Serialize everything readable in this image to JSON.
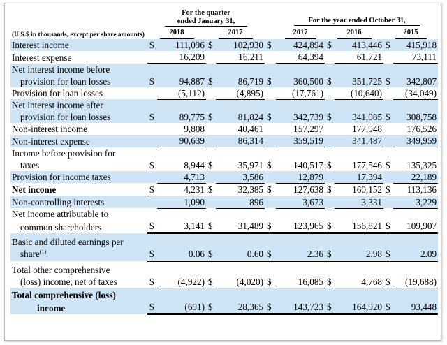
{
  "header": {
    "quarter_group": "For the quarter ended January 31,",
    "quarter_line1": "For the quarter",
    "quarter_line2": "ended January 31,",
    "year_group": "For the year ended October 31,",
    "units_label": "(U.S.$ in thousands, except per share amounts)",
    "years": [
      "2018",
      "2017",
      "2017",
      "2016",
      "2015"
    ]
  },
  "rows": [
    {
      "label": "Interest income",
      "values": [
        "111,096",
        "102,930",
        "424,894",
        "413,446",
        "415,918"
      ]
    },
    {
      "label": "Interest expense",
      "values": [
        "16,209",
        "16,211",
        "64,394",
        "61,721",
        "73,111"
      ]
    },
    {
      "label1": "Net interest income before",
      "label2": "provision for loan losses",
      "values": [
        "94,887",
        "86,719",
        "360,500",
        "351,725",
        "342,807"
      ]
    },
    {
      "label": "Provision for loan losses",
      "values": [
        "(5,112)",
        "(4,895)",
        "(17,761)",
        "(10,640)",
        "(34,049)"
      ]
    },
    {
      "label1": "Net interest income after",
      "label2": "provision for loan losses",
      "values": [
        "89,775",
        "81,824",
        "342,739",
        "341,085",
        "308,758"
      ]
    },
    {
      "label": "Non-interest income",
      "values": [
        "9,808",
        "40,461",
        "157,297",
        "177,948",
        "176,526"
      ]
    },
    {
      "label": "Non-interest expense",
      "values": [
        "90,639",
        "86,314",
        "359,519",
        "341,487",
        "349,959"
      ]
    },
    {
      "label1": "Income before provision for",
      "label2": "taxes",
      "values": [
        "8,944",
        "35,971",
        "140,517",
        "177,546",
        "135,325"
      ]
    },
    {
      "label": "Provision for income taxes",
      "values": [
        "4,713",
        "3,586",
        "12,879",
        "17,394",
        "22,189"
      ]
    },
    {
      "label": "Net income",
      "values": [
        "4,231",
        "32,385",
        "127,638",
        "160,152",
        "113,136"
      ]
    },
    {
      "label": "Non-controlling interests",
      "values": [
        "1,090",
        "896",
        "3,673",
        "3,331",
        "3,229"
      ]
    },
    {
      "label1": "Net income attributable to",
      "label2": "common shareholders",
      "values": [
        "3,141",
        "31,489",
        "123,965",
        "156,821",
        "109,907"
      ]
    },
    {
      "label1": "Basic and diluted earnings per",
      "label2": "share",
      "footnote": "(1)",
      "values": [
        "0.06",
        "0.60",
        "2.36",
        "2.98",
        "2.09"
      ]
    },
    {
      "label1": "Total other comprehensive",
      "label2": "(loss) income, net of taxes",
      "values": [
        "(4,922)",
        "(4,020)",
        "16,085",
        "4,768",
        "(19,688)"
      ]
    },
    {
      "label1": "Total comprehensive (loss)",
      "label2": "income",
      "values": [
        "(691)",
        "28,365",
        "143,723",
        "164,920",
        "93,448"
      ]
    }
  ],
  "currency_symbol": "$"
}
